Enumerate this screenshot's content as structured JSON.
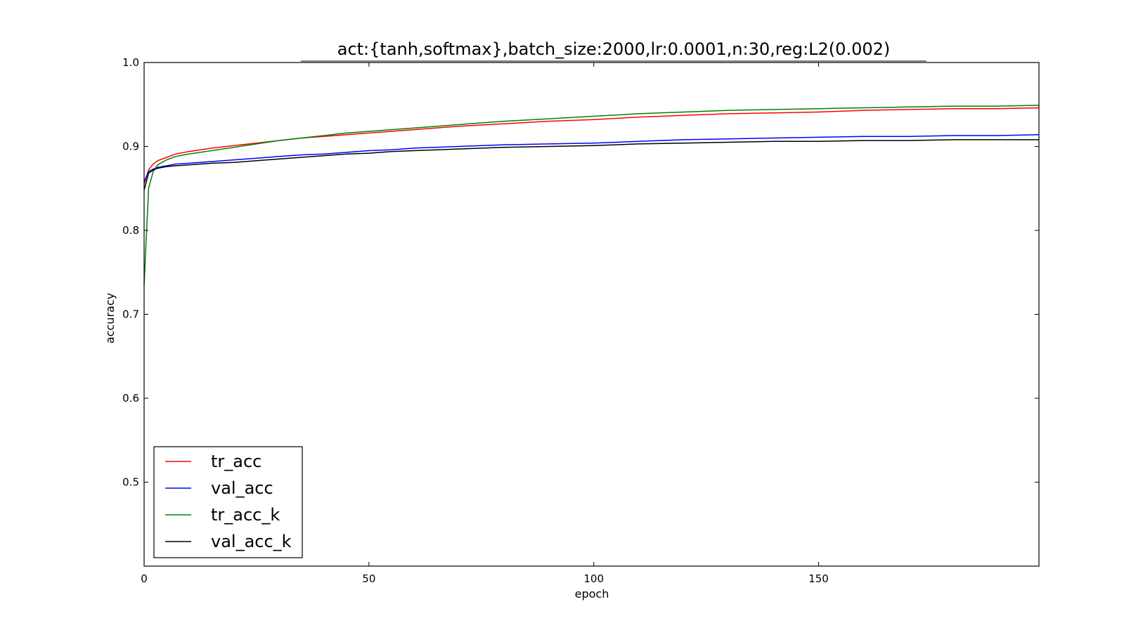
{
  "chart_data": {
    "type": "line",
    "title": "act:{tanh,softmax},batch_size:2000,lr:0.0001,n:30,reg:L2(0.002)",
    "xlabel": "epoch",
    "ylabel": "accuracy",
    "xlim": [
      0,
      199
    ],
    "ylim": [
      0.4,
      1.0
    ],
    "xticks": [
      0,
      50,
      100,
      150
    ],
    "yticks": [
      0.5,
      0.6,
      0.7,
      0.8,
      0.9,
      1.0
    ],
    "xtick_labels": [
      "0",
      "50",
      "100",
      "150"
    ],
    "ytick_labels": [
      "0.5",
      "0.6",
      "0.7",
      "0.8",
      "0.9",
      "1.0"
    ],
    "grid": false,
    "legend_position": "lower-left",
    "x": [
      0,
      1,
      2,
      3,
      5,
      7,
      10,
      15,
      20,
      25,
      30,
      35,
      40,
      45,
      50,
      55,
      60,
      70,
      80,
      90,
      100,
      110,
      120,
      130,
      140,
      150,
      160,
      170,
      180,
      190,
      199
    ],
    "series": [
      {
        "name": "tr_acc",
        "color": "#ff0000",
        "values": [
          0.855,
          0.872,
          0.879,
          0.883,
          0.887,
          0.891,
          0.894,
          0.898,
          0.901,
          0.904,
          0.907,
          0.91,
          0.912,
          0.914,
          0.916,
          0.918,
          0.92,
          0.924,
          0.927,
          0.93,
          0.932,
          0.935,
          0.937,
          0.939,
          0.94,
          0.941,
          0.943,
          0.944,
          0.945,
          0.945,
          0.946
        ]
      },
      {
        "name": "val_acc",
        "color": "#0000ff",
        "values": [
          0.858,
          0.87,
          0.873,
          0.875,
          0.877,
          0.879,
          0.88,
          0.882,
          0.884,
          0.886,
          0.888,
          0.89,
          0.891,
          0.893,
          0.895,
          0.896,
          0.898,
          0.9,
          0.902,
          0.903,
          0.904,
          0.906,
          0.908,
          0.909,
          0.91,
          0.911,
          0.912,
          0.912,
          0.913,
          0.913,
          0.914
        ]
      },
      {
        "name": "tr_acc_k",
        "color": "#008000",
        "values": [
          0.735,
          0.85,
          0.87,
          0.878,
          0.884,
          0.888,
          0.891,
          0.895,
          0.899,
          0.903,
          0.907,
          0.91,
          0.913,
          0.916,
          0.918,
          0.92,
          0.922,
          0.926,
          0.93,
          0.933,
          0.936,
          0.939,
          0.941,
          0.943,
          0.944,
          0.945,
          0.946,
          0.947,
          0.948,
          0.948,
          0.949
        ]
      },
      {
        "name": "val_acc_k",
        "color": "#000000",
        "values": [
          0.848,
          0.868,
          0.872,
          0.874,
          0.876,
          0.877,
          0.878,
          0.88,
          0.881,
          0.883,
          0.885,
          0.887,
          0.889,
          0.891,
          0.892,
          0.894,
          0.895,
          0.897,
          0.899,
          0.9,
          0.901,
          0.903,
          0.904,
          0.905,
          0.906,
          0.906,
          0.907,
          0.907,
          0.908,
          0.908,
          0.908
        ]
      }
    ]
  }
}
